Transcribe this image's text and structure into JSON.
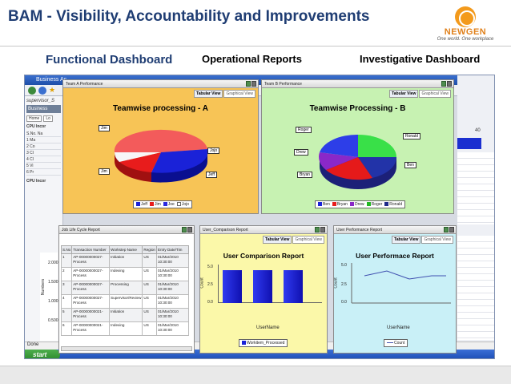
{
  "slide": {
    "title": "BAM - Visibility, Accountability and Improvements",
    "logo_name": "NEWGEN",
    "logo_tagline": "One world. One workplace",
    "labels": [
      "Functional Dashboard",
      "Operational Reports",
      "Investigative Dashboard"
    ]
  },
  "browser": {
    "title": "Business Ac...",
    "left_text": "supervisor_S",
    "left_tab": "Business",
    "home_tab": "Home",
    "home_tab2": "Lo",
    "cpu_label": "CPU Incor",
    "cpu_label2": "CPU Incor",
    "left_rows": [
      "S.No.  Na",
      "1    Ma",
      "2    Co",
      "3    Cl",
      "4    Cl",
      "5    Vi",
      "6    Pr"
    ],
    "right_number": "40",
    "status": "Done",
    "start": "start"
  },
  "panels": {
    "team_a": {
      "header": "Team A Performance",
      "tabs": [
        "Tabular View",
        "Graphical View"
      ],
      "title": "Teamwise processing - A",
      "callouts": [
        "Jim",
        "Jojo",
        "Jim",
        "Jeff"
      ],
      "legend": [
        {
          "name": "Jeff",
          "color": "#1a22d8"
        },
        {
          "name": "Jim",
          "color": "#e81c1c"
        },
        {
          "name": "Joe",
          "color": "#2a2ae0"
        },
        {
          "name": "Jojo",
          "color": "#ffffff"
        }
      ]
    },
    "team_b": {
      "header": "Team B Performance",
      "tabs": [
        "Tabular View",
        "Graphical View"
      ],
      "title": "Teamwise Processing - B",
      "callouts": [
        "Roger",
        "Ronald",
        "Drew",
        "Ben",
        "Bryan"
      ],
      "legend": [
        {
          "name": "Ben",
          "color": "#1a22d8"
        },
        {
          "name": "Bryan",
          "color": "#e81c1c"
        },
        {
          "name": "Drew",
          "color": "#8a28c8"
        },
        {
          "name": "Roger",
          "color": "#22b822"
        },
        {
          "name": "Ronald",
          "color": "#1e2a8a"
        }
      ]
    },
    "job_life": {
      "header": "Job Life Cycle Report",
      "columns": [
        "S.No",
        "Transaction Number",
        "Workstep Name",
        "Region",
        "Entry Date/Tim"
      ],
      "rows": [
        [
          "1",
          "AP-00000000027-Process",
          "Initiation",
          "US",
          "01/Mar/2010 10:30:00"
        ],
        [
          "2",
          "AP-00000000027-Process",
          "Indexing",
          "US",
          "01/Mar/2010 10:30:00"
        ],
        [
          "3",
          "AP-00000000027-Process",
          "Processing",
          "US",
          "01/Mar/2010 10:30:00"
        ],
        [
          "4",
          "AP-00000000027-Process",
          "Supervisor/Review",
          "US",
          "01/Mar/2010 10:30:00"
        ],
        [
          "5",
          "AP-00000000021-Process",
          "Initiation",
          "US",
          "01/Mar/2010 10:30:00"
        ],
        [
          "6",
          "AP-00000000021-Process",
          "Indexing",
          "US",
          "01/Mar/2010 10:30:00"
        ]
      ]
    },
    "user_comparison": {
      "header": "User_Comparison Report",
      "tabs": [
        "Tabular View",
        "Graphical View"
      ],
      "title": "User Comparison Report",
      "ylabel": "Count",
      "xlabel": "UserName",
      "legend": "Workitem_Processed",
      "yticks": [
        "5.0",
        "2.5",
        "0.0"
      ]
    },
    "user_performance": {
      "header": "User Performance Report",
      "tabs": [
        "Tabular View",
        "Graphical View"
      ],
      "title": "User Performace Report",
      "ylabel": "Count",
      "xlabel": "UserName",
      "legend": "Count",
      "yticks": [
        "5.0",
        "2.5",
        "0.0"
      ]
    }
  },
  "left_axis": {
    "ticks": [
      "2.000",
      "1.500",
      "1.000",
      "0.500"
    ],
    "label": "Numbers"
  },
  "colors": {
    "title": "#1f3d73",
    "panel_a_bg": "#f7c456",
    "panel_b_bg": "#c7f2b2",
    "panel_c_bg": "#fbf8a9",
    "panel_d_bg": "#c9f0f7"
  }
}
